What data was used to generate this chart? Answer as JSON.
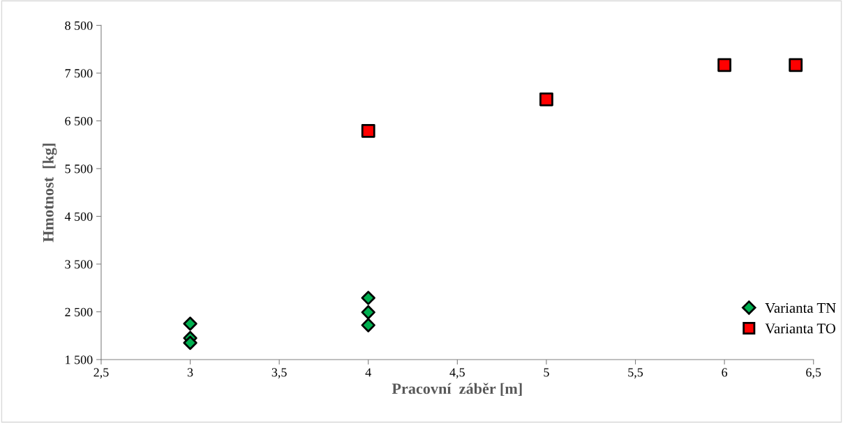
{
  "chart_data": {
    "type": "scatter",
    "xlabel": "Pracovní  záběr [m]",
    "ylabel": "Hmotnost  [kg]",
    "series": [
      {
        "name": "Varianta TN",
        "color": "#00b050",
        "marker": "diamond",
        "x": [
          3,
          3,
          3,
          4,
          4,
          4
        ],
        "values": [
          2250,
          1950,
          1850,
          2790,
          2490,
          2220
        ]
      },
      {
        "name": "Varianta TO",
        "color": "#ff0000",
        "marker": "square",
        "x": [
          4,
          5,
          6,
          6.4
        ],
        "values": [
          6290,
          6950,
          7670,
          7670
        ]
      }
    ],
    "xlim": [
      2.5,
      6.5
    ],
    "xticks": [
      {
        "value": 2.5,
        "label": "2,5"
      },
      3,
      {
        "value": 3.5,
        "label": "3,5"
      },
      4,
      {
        "value": 4.5,
        "label": "4,5"
      },
      5,
      {
        "value": 5.5,
        "label": "5,5"
      },
      6,
      {
        "value": 6.5,
        "label": "6,5"
      }
    ],
    "ylim": [
      1500,
      8500
    ],
    "yticks": [
      {
        "value": 1500,
        "label": "1 500"
      },
      {
        "value": 2500,
        "label": "2 500"
      },
      {
        "value": 3500,
        "label": "3 500"
      },
      {
        "value": 4500,
        "label": "4 500"
      },
      {
        "value": 5500,
        "label": "5 500"
      },
      {
        "value": 6500,
        "label": "6 500"
      },
      {
        "value": 7500,
        "label": "7 500"
      },
      {
        "value": 8500,
        "label": "8 500"
      }
    ],
    "grid": false,
    "legend": "right"
  }
}
